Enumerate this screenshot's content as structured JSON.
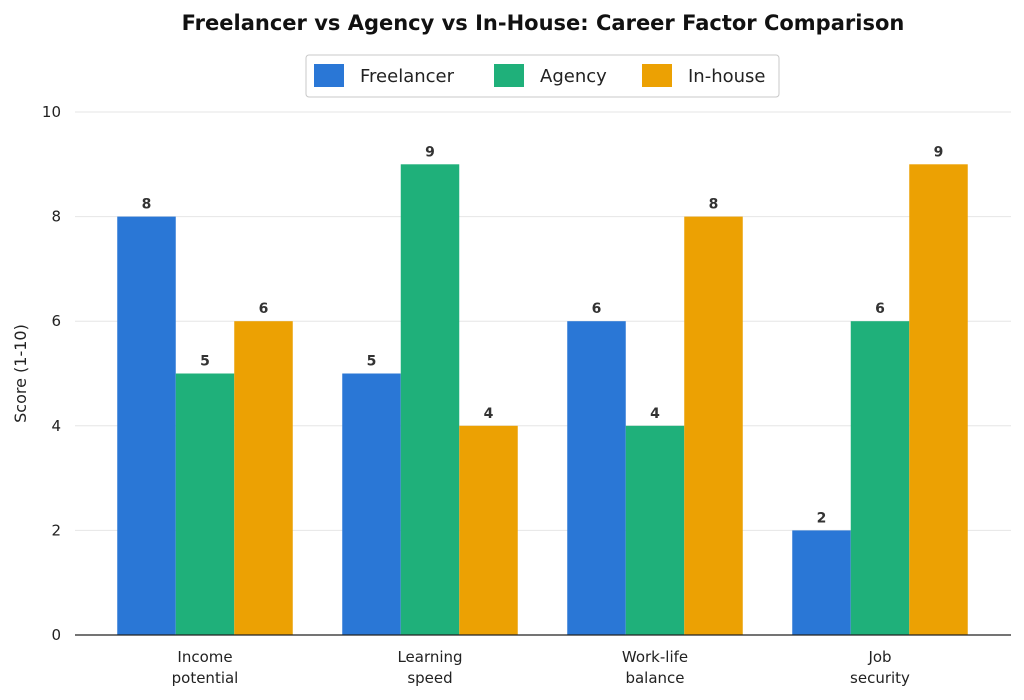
{
  "chart_data": {
    "type": "bar",
    "title": "Freelancer vs Agency vs In-House: Career Factor Comparison",
    "xlabel": "",
    "ylabel": "Score (1-10)",
    "ylim": [
      0,
      10
    ],
    "yticks": [
      0,
      2,
      4,
      6,
      8,
      10
    ],
    "grid": true,
    "legend_position": "top-center",
    "categories": [
      [
        "Income",
        "potential"
      ],
      [
        "Learning",
        "speed"
      ],
      [
        "Work-life",
        "balance"
      ],
      [
        "Job",
        "security"
      ]
    ],
    "series": [
      {
        "name": "Freelancer",
        "color": "#2a77d6",
        "values": [
          8,
          5,
          6,
          2
        ]
      },
      {
        "name": "Agency",
        "color": "#1fb07a",
        "values": [
          5,
          9,
          4,
          6
        ]
      },
      {
        "name": "In-house",
        "color": "#eca103",
        "values": [
          6,
          4,
          8,
          9
        ]
      }
    ]
  }
}
